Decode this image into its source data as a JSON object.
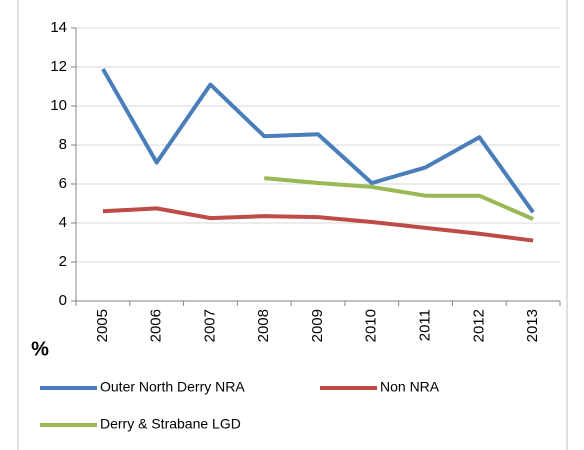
{
  "chart_data": {
    "type": "line",
    "ylabel": "%",
    "categories": [
      "2005",
      "2006",
      "2007",
      "2008",
      "2009",
      "2010",
      "2011",
      "2012",
      "2013"
    ],
    "series": [
      {
        "name": "Outer North Derry NRA",
        "color": "#4a7ebb",
        "values": [
          11.9,
          7.1,
          11.1,
          8.45,
          8.55,
          6.05,
          6.85,
          8.4,
          4.55
        ]
      },
      {
        "name": "Non NRA",
        "color": "#be4b48",
        "values": [
          4.6,
          4.75,
          4.25,
          4.35,
          4.3,
          4.05,
          3.75,
          3.45,
          3.1
        ]
      },
      {
        "name": "Derry & Strabane LGD",
        "color": "#98b954",
        "values": [
          null,
          null,
          null,
          6.3,
          6.05,
          5.85,
          5.4,
          5.4,
          4.2
        ]
      }
    ],
    "ylim": [
      0,
      14
    ],
    "yticks": [
      0,
      2,
      4,
      6,
      8,
      10,
      12,
      14
    ],
    "grid": true,
    "legend": "bottom"
  }
}
